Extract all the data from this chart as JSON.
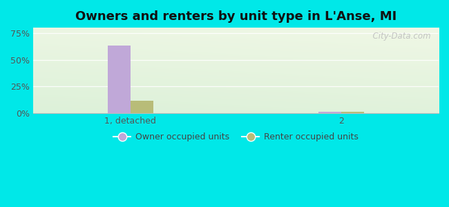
{
  "title": "Owners and renters by unit type in L'Anse, MI",
  "categories": [
    "1, detached",
    "2"
  ],
  "owner_values": [
    63.0,
    1.5
  ],
  "renter_values": [
    12.0,
    1.5
  ],
  "owner_color": "#c0a8d8",
  "renter_color": "#b8bc78",
  "outer_bg": "#00e8e8",
  "yticks": [
    0,
    25,
    50,
    75
  ],
  "ylim": [
    0,
    80
  ],
  "watermark": "  City-Data.com",
  "legend_labels": [
    "Owner occupied units",
    "Renter occupied units"
  ],
  "title_fontsize": 13,
  "bar_width": 0.28,
  "group_positions": [
    1.2,
    3.8
  ],
  "xlim": [
    0.0,
    5.0
  ]
}
